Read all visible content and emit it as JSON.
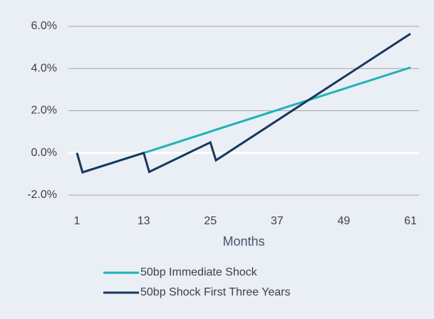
{
  "chart_data": {
    "type": "line",
    "x_label": "Months",
    "x": [
      1,
      2,
      13,
      14,
      25,
      26,
      61
    ],
    "series": [
      {
        "name": "50bp Immediate Shock",
        "color": "#1fb3b8",
        "values": [
          0,
          -0.92,
          0,
          0.08,
          1.01,
          1.1,
          4.05
        ]
      },
      {
        "name": "50bp Shock First Three Years",
        "color": "#17375e",
        "values": [
          0,
          -0.92,
          0,
          -0.9,
          0.5,
          -0.35,
          5.65
        ]
      }
    ],
    "xlim": [
      1,
      61
    ],
    "xticks": [
      1,
      13,
      25,
      37,
      49,
      61
    ],
    "ylim": [
      -2,
      6
    ],
    "yticks": [
      {
        "value": -2,
        "label": "-2.0%"
      },
      {
        "value": 0,
        "label": "0.0%"
      },
      {
        "value": 2,
        "label": "2.0%"
      },
      {
        "value": 4,
        "label": "4.0%"
      },
      {
        "value": 6,
        "label": "6.0%"
      }
    ],
    "grid": true
  }
}
